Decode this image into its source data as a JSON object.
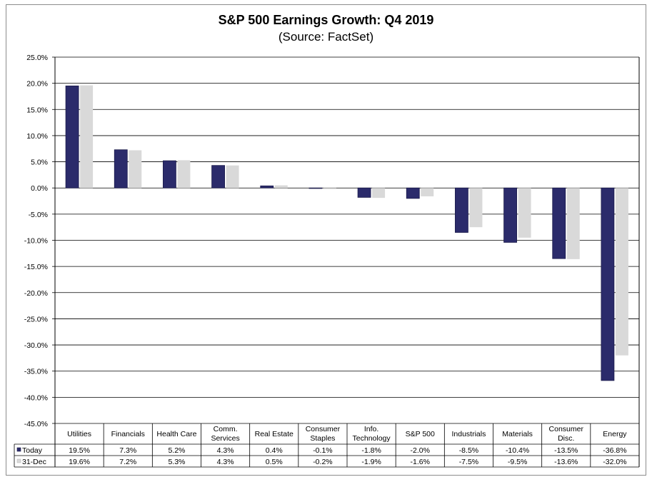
{
  "chart_data": {
    "type": "bar",
    "title": "S&P 500 Earnings Growth: Q4 2019",
    "subtitle": "(Source: FactSet)",
    "categories": [
      "Utilities",
      "Financials",
      "Health Care",
      "Comm. Services",
      "Real Estate",
      "Consumer Staples",
      "Info. Technology",
      "S&P 500",
      "Industrials",
      "Materials",
      "Consumer Disc.",
      "Energy"
    ],
    "series": [
      {
        "name": "Today",
        "color": "#2b2b6b",
        "values": [
          19.5,
          7.3,
          5.2,
          4.3,
          0.4,
          -0.1,
          -1.8,
          -2.0,
          -8.5,
          -10.4,
          -13.5,
          -36.8
        ],
        "labels": [
          "19.5%",
          "7.3%",
          "5.2%",
          "4.3%",
          "0.4%",
          "-0.1%",
          "-1.8%",
          "-2.0%",
          "-8.5%",
          "-10.4%",
          "-13.5%",
          "-36.8%"
        ]
      },
      {
        "name": "31-Dec",
        "color": "#d9d9d9",
        "values": [
          19.6,
          7.2,
          5.3,
          4.3,
          0.5,
          -0.2,
          -1.9,
          -1.6,
          -7.5,
          -9.5,
          -13.6,
          -32.0
        ],
        "labels": [
          "19.6%",
          "7.2%",
          "5.3%",
          "4.3%",
          "0.5%",
          "-0.2%",
          "-1.9%",
          "-1.6%",
          "-7.5%",
          "-9.5%",
          "-13.6%",
          "-32.0%"
        ]
      }
    ],
    "ylim": [
      -45,
      25
    ],
    "yticks": [
      "25.0%",
      "20.0%",
      "15.0%",
      "10.0%",
      "5.0%",
      "0.0%",
      "-5.0%",
      "-10.0%",
      "-15.0%",
      "-20.0%",
      "-25.0%",
      "-30.0%",
      "-35.0%",
      "-40.0%",
      "-45.0%"
    ],
    "grid": true,
    "legend": "data-table"
  }
}
